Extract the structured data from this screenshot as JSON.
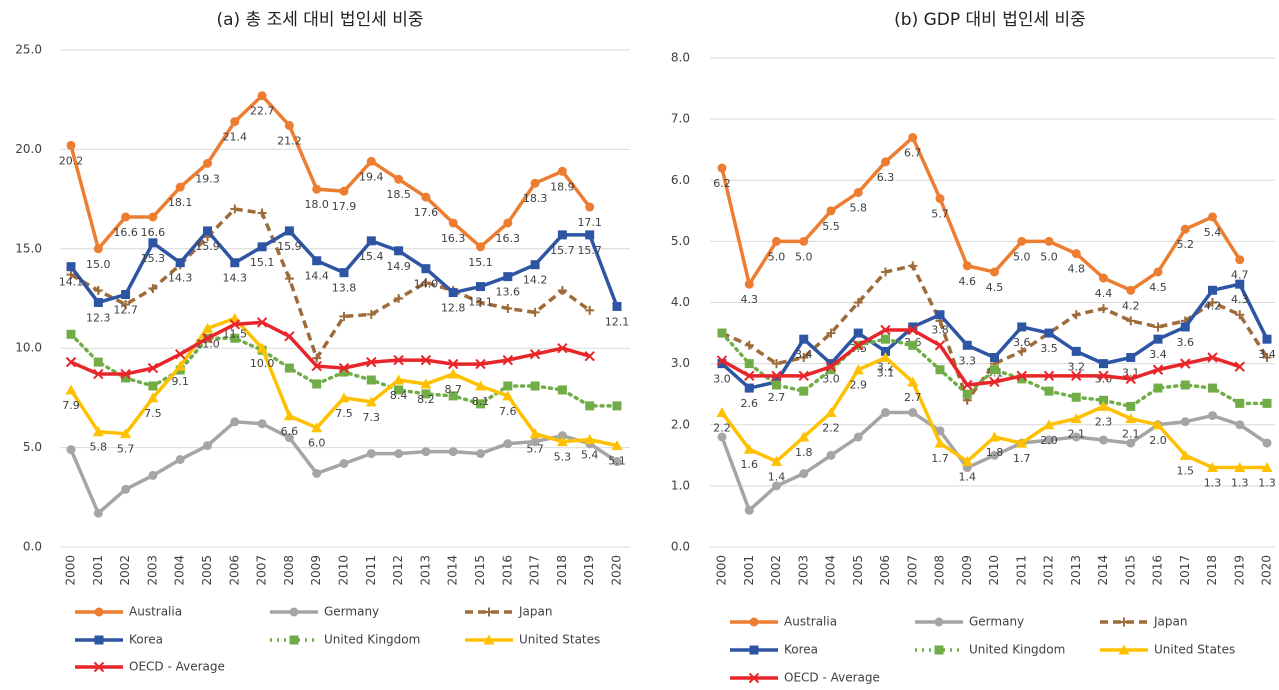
{
  "chart_data": [
    {
      "type": "line",
      "title": "(a) 총 조세 대비 법인세 비중",
      "categories": [
        "2000",
        "2001",
        "2002",
        "2003",
        "2004",
        "2005",
        "2006",
        "2007",
        "2008",
        "2009",
        "2010",
        "2011",
        "2012",
        "2013",
        "2014",
        "2015",
        "2016",
        "2017",
        "2018",
        "2019",
        "2020"
      ],
      "ylim": [
        0,
        25
      ],
      "yticks": [
        {
          "value": 0,
          "label": "0.0"
        },
        {
          "value": 5,
          "label": "5.0"
        },
        {
          "value": 10,
          "label": "10.0"
        },
        {
          "value": 15,
          "label": "15.0"
        },
        {
          "value": 20,
          "label": "20.0"
        },
        {
          "value": 25,
          "label": "25.0"
        }
      ],
      "grid": true,
      "legend": "bottom",
      "series": [
        {
          "name": "Australia",
          "color": "#ed7d31",
          "marker": "circle",
          "line_style": "solid",
          "values": [
            20.2,
            15.0,
            16.6,
            16.6,
            18.1,
            19.3,
            21.4,
            22.7,
            21.2,
            18.0,
            17.9,
            19.4,
            18.5,
            17.6,
            16.3,
            15.1,
            16.3,
            18.3,
            18.9,
            17.1,
            null
          ],
          "value_labels": [
            "20.2",
            "15.0",
            "16.6",
            "16.6",
            "18.1",
            "19.3",
            "21.4",
            "22.7",
            "21.2",
            "18.0",
            "17.9",
            "19.4",
            "18.5",
            "17.6",
            "16.3",
            "15.1",
            "16.3",
            "18.3",
            "18.9",
            "17.1",
            null
          ]
        },
        {
          "name": "Germany",
          "color": "#a5a5a5",
          "marker": "circle",
          "line_style": "solid",
          "values": [
            4.9,
            1.7,
            2.9,
            3.6,
            4.4,
            5.1,
            6.3,
            6.2,
            5.5,
            3.7,
            4.2,
            4.7,
            4.7,
            4.8,
            4.8,
            4.7,
            5.2,
            5.3,
            5.6,
            5.2,
            4.3
          ]
        },
        {
          "name": "Japan",
          "color": "#9e6b3a",
          "marker": "plus",
          "line_style": "dashed",
          "values": [
            13.7,
            12.9,
            12.2,
            13.0,
            14.2,
            15.6,
            17.0,
            16.8,
            13.5,
            9.5,
            11.6,
            11.7,
            12.5,
            13.3,
            12.9,
            12.3,
            12.0,
            11.8,
            12.9,
            11.9,
            null
          ]
        },
        {
          "name": "Korea",
          "color": "#2e55a4",
          "marker": "square",
          "line_style": "solid",
          "values": [
            14.1,
            12.3,
            12.7,
            15.3,
            14.3,
            15.9,
            14.3,
            15.1,
            15.9,
            14.4,
            13.8,
            15.4,
            14.9,
            14.0,
            12.8,
            13.1,
            13.6,
            14.2,
            15.7,
            15.7,
            12.1
          ],
          "value_labels": [
            "14.1",
            "12.3",
            "12.7",
            "15.3",
            "14.3",
            "15.9",
            "14.3",
            "15.1",
            "15.9",
            "14.4",
            "13.8",
            "15.4",
            "14.9",
            "14.0",
            "12.8",
            "13.1",
            "13.6",
            "14.2",
            "15.7",
            "15.7",
            "12.1"
          ]
        },
        {
          "name": "United Kingdom",
          "color": "#70ad47",
          "marker": "square",
          "line_style": "dotted",
          "values": [
            10.7,
            9.3,
            8.5,
            8.1,
            8.9,
            10.5,
            10.5,
            9.9,
            9.0,
            8.2,
            8.8,
            8.4,
            7.9,
            7.7,
            7.6,
            7.2,
            8.1,
            8.1,
            7.9,
            7.1,
            7.1
          ]
        },
        {
          "name": "United States",
          "color": "#ffc000",
          "marker": "triangle",
          "line_style": "solid",
          "values": [
            7.9,
            5.8,
            5.7,
            7.5,
            9.1,
            11.0,
            11.5,
            10.0,
            6.6,
            6.0,
            7.5,
            7.3,
            8.4,
            8.2,
            8.7,
            8.1,
            7.6,
            5.7,
            5.3,
            5.4,
            5.1
          ],
          "value_labels": [
            "7.9",
            "5.8",
            "5.7",
            "7.5",
            "9.1",
            "11.0",
            "11.5",
            "10.0",
            "6.6",
            "6.0",
            "7.5",
            "7.3",
            "8.4",
            "8.2",
            "8.7",
            "8.1",
            "7.6",
            "5.7",
            "5.3",
            "5.4",
            "5.1"
          ]
        },
        {
          "name": "OECD - Average",
          "color": "#e8262a",
          "marker": "x",
          "line_style": "solid",
          "values": [
            9.3,
            8.7,
            8.7,
            9.0,
            9.7,
            10.5,
            11.2,
            11.3,
            10.6,
            9.1,
            9.0,
            9.3,
            9.4,
            9.4,
            9.2,
            9.2,
            9.4,
            9.7,
            10.0,
            9.6,
            null
          ]
        }
      ]
    },
    {
      "type": "line",
      "title": "(b) GDP 대비 법인세 비중",
      "categories": [
        "2000",
        "2001",
        "2002",
        "2003",
        "2004",
        "2005",
        "2006",
        "2007",
        "2008",
        "2009",
        "2010",
        "2011",
        "2012",
        "2013",
        "2014",
        "2015",
        "2016",
        "2017",
        "2018",
        "2019",
        "2020"
      ],
      "ylim": [
        0,
        8
      ],
      "yticks": [
        {
          "value": 0,
          "label": "0.0"
        },
        {
          "value": 1,
          "label": "1.0"
        },
        {
          "value": 2,
          "label": "2.0"
        },
        {
          "value": 3,
          "label": "3.0"
        },
        {
          "value": 4,
          "label": "4.0"
        },
        {
          "value": 5,
          "label": "5.0"
        },
        {
          "value": 6,
          "label": "6.0"
        },
        {
          "value": 7,
          "label": "7.0"
        },
        {
          "value": 8,
          "label": "8.0"
        }
      ],
      "grid": true,
      "legend": "bottom",
      "series": [
        {
          "name": "Australia",
          "color": "#ed7d31",
          "marker": "circle",
          "line_style": "solid",
          "values": [
            6.2,
            4.3,
            5.0,
            5.0,
            5.5,
            5.8,
            6.3,
            6.7,
            5.7,
            4.6,
            4.5,
            5.0,
            5.0,
            4.8,
            4.4,
            4.2,
            4.5,
            5.2,
            5.4,
            4.7,
            null
          ],
          "value_labels": [
            "6.2",
            "4.3",
            "5.0",
            "5.0",
            "5.5",
            "5.8",
            "6.3",
            "6.7",
            "5.7",
            "4.6",
            "4.5",
            "5.0",
            "5.0",
            "4.8",
            "4.4",
            "4.2",
            "4.5",
            "5.2",
            "5.4",
            "4.7",
            null
          ]
        },
        {
          "name": "Germany",
          "color": "#a5a5a5",
          "marker": "circle",
          "line_style": "solid",
          "values": [
            1.8,
            0.6,
            1.0,
            1.2,
            1.5,
            1.8,
            2.2,
            2.2,
            1.9,
            1.3,
            1.5,
            1.7,
            1.75,
            1.8,
            1.75,
            1.7,
            2.0,
            2.05,
            2.15,
            2.0,
            1.7
          ]
        },
        {
          "name": "Japan",
          "color": "#9e6b3a",
          "marker": "plus",
          "line_style": "dashed",
          "values": [
            3.5,
            3.3,
            3.0,
            3.1,
            3.5,
            4.0,
            4.5,
            4.6,
            3.7,
            2.4,
            3.0,
            3.2,
            3.5,
            3.8,
            3.9,
            3.7,
            3.6,
            3.7,
            4.0,
            3.8,
            3.1
          ]
        },
        {
          "name": "Korea",
          "color": "#2e55a4",
          "marker": "square",
          "line_style": "solid",
          "values": [
            3.0,
            2.6,
            2.7,
            3.4,
            3.0,
            3.5,
            3.2,
            3.6,
            3.8,
            3.3,
            3.1,
            3.6,
            3.5,
            3.2,
            3.0,
            3.1,
            3.4,
            3.6,
            4.2,
            4.3,
            3.4
          ],
          "value_labels": [
            "3.0",
            "2.6",
            "2.7",
            "3.4",
            "3.0",
            "3.5",
            "3.2",
            "3.6",
            "3.8",
            "3.3",
            "3.1",
            "3.6",
            "3.5",
            "3.2",
            "3.0",
            "3.1",
            "3.4",
            "3.6",
            "4.2",
            "4.3",
            "3.4"
          ]
        },
        {
          "name": "United Kingdom",
          "color": "#70ad47",
          "marker": "square",
          "line_style": "dotted",
          "values": [
            3.5,
            3.0,
            2.65,
            2.55,
            2.9,
            3.3,
            3.4,
            3.3,
            2.9,
            2.5,
            2.9,
            2.75,
            2.55,
            2.45,
            2.4,
            2.3,
            2.6,
            2.65,
            2.6,
            2.35,
            2.35
          ]
        },
        {
          "name": "United States",
          "color": "#ffc000",
          "marker": "triangle",
          "line_style": "solid",
          "values": [
            2.2,
            1.6,
            1.4,
            1.8,
            2.2,
            2.9,
            3.1,
            2.7,
            1.7,
            1.4,
            1.8,
            1.7,
            2.0,
            2.1,
            2.3,
            2.1,
            2.0,
            1.5,
            1.3,
            1.3,
            1.3
          ],
          "value_labels": [
            "2.2",
            "1.6",
            "1.4",
            "1.8",
            "2.2",
            "2.9",
            "3.1",
            "2.7",
            "1.7",
            "1.4",
            "1.8",
            "1.7",
            "2.0",
            "2.1",
            "2.3",
            "2.1",
            "2.0",
            "1.5",
            "1.3",
            "1.3",
            "1.3"
          ]
        },
        {
          "name": "OECD - Average",
          "color": "#e8262a",
          "marker": "x",
          "line_style": "solid",
          "values": [
            3.05,
            2.8,
            2.8,
            2.8,
            2.95,
            3.3,
            3.55,
            3.55,
            3.3,
            2.65,
            2.7,
            2.8,
            2.8,
            2.8,
            2.8,
            2.75,
            2.9,
            3.0,
            3.1,
            2.95,
            null
          ]
        }
      ]
    }
  ]
}
